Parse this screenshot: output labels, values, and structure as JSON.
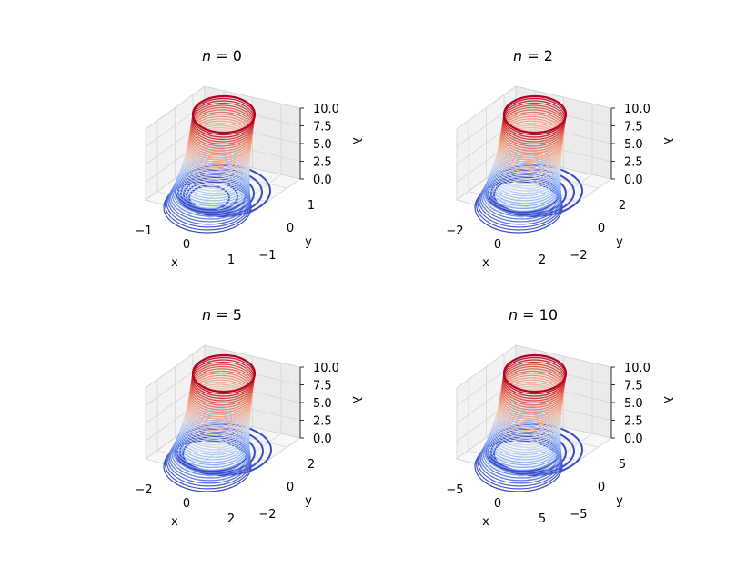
{
  "chart_data": [
    {
      "type": "surface3d-contours",
      "title": "n = 0",
      "title_parts": [
        "n",
        " = ",
        "0"
      ],
      "n": 0,
      "xlabel": "x",
      "ylabel": "y",
      "zlabel": "λ",
      "xticks": [
        "−1",
        "0",
        "1"
      ],
      "yticks": [
        "−1",
        "0",
        "1"
      ],
      "zticks": [
        "0.0",
        "2.5",
        "5.0",
        "7.5",
        "10.0"
      ],
      "xlim": [
        -1.2,
        1.2
      ],
      "ylim": [
        -1.2,
        1.2
      ],
      "zlim": [
        0,
        10
      ],
      "colormap": "coolwarm",
      "grid": true
    },
    {
      "type": "surface3d-contours",
      "title": "n = 2",
      "title_parts": [
        "n",
        " = ",
        "2"
      ],
      "n": 2,
      "xlabel": "x",
      "ylabel": "y",
      "zlabel": "λ",
      "xticks": [
        "−2",
        "0",
        "2"
      ],
      "yticks": [
        "−2",
        "0",
        "2"
      ],
      "zticks": [
        "0.0",
        "2.5",
        "5.0",
        "7.5",
        "10.0"
      ],
      "xlim": [
        -2.8,
        2.8
      ],
      "ylim": [
        -2.8,
        2.8
      ],
      "zlim": [
        0,
        10
      ],
      "colormap": "coolwarm",
      "grid": true
    },
    {
      "type": "surface3d-contours",
      "title": "n = 5",
      "title_parts": [
        "n",
        " = ",
        "5"
      ],
      "n": 5,
      "xlabel": "x",
      "ylabel": "y",
      "zlabel": "λ",
      "xticks": [
        "−2",
        "0",
        "2"
      ],
      "yticks": [
        "−2",
        "0",
        "2"
      ],
      "zticks": [
        "0.0",
        "2.5",
        "5.0",
        "7.5",
        "10.0"
      ],
      "xlim": [
        -4,
        4
      ],
      "ylim": [
        -4,
        4
      ],
      "zlim": [
        0,
        10
      ],
      "colormap": "coolwarm",
      "grid": true
    },
    {
      "type": "surface3d-contours",
      "title": "n = 10",
      "title_parts": [
        "n",
        " = ",
        "10"
      ],
      "n": 10,
      "xlabel": "x",
      "ylabel": "y",
      "zlabel": "λ",
      "xticks": [
        "−5",
        "0",
        "5"
      ],
      "yticks": [
        "−5",
        "0",
        "5"
      ],
      "zticks": [
        "0.0",
        "2.5",
        "5.0",
        "7.5",
        "10.0"
      ],
      "xlim": [
        -6.5,
        6.5
      ],
      "ylim": [
        -6.5,
        6.5
      ],
      "zlim": [
        0,
        10
      ],
      "colormap": "coolwarm",
      "grid": true
    }
  ]
}
